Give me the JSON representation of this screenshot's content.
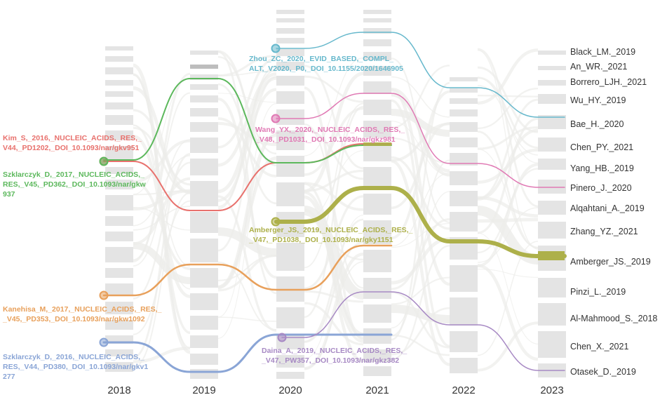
{
  "years": [
    "2018",
    "2019",
    "2020",
    "2021",
    "2022",
    "2023"
  ],
  "right_labels": [
    "Black_LM._2019",
    "An_WR._2021",
    "Borrero_LJH._2021",
    "Wu_HY._2019",
    "Bae_H._2020",
    "Chen_PY._2021",
    "Yang_HB._2019",
    "Pinero_J._2020",
    "Alqahtani_A._2019",
    "Zhang_YZ._2021",
    "Amberger_JS._2019",
    "Pinzi_L._2019",
    "Al-Mahmood_S._2018",
    "Chen_X._2021",
    "Otasek_D._2019"
  ],
  "papers": [
    {
      "id": "kim",
      "color": "#e8716d",
      "lines": [
        "Kim_S,_2016,_NUCLEIC_ACIDS,_RES,_",
        "V44,_PD1202,_DOI_10.1093/nar/gkv951"
      ]
    },
    {
      "id": "szk2017",
      "color": "#5cb85c",
      "lines": [
        "Szklarczyk_D,_2017,_NUCLEIC_ACIDS,_",
        "RES,_V45,_PD362,_DOI_10.1093/nar/gkw",
        "937"
      ]
    },
    {
      "id": "kanehisa",
      "color": "#e8a05b",
      "lines": [
        "Kanehisa_M,_2017,_NUCLEIC_ACIDS,_RES,_",
        "_V45,_PD353,_DOI_10.1093/nar/gkw1092"
      ]
    },
    {
      "id": "szk2016",
      "color": "#8aa5d6",
      "lines": [
        "Szklarczyk_D,_2016,_NUCLEIC_ACIDS,_",
        "RES,_V44,_PD380,_DOI_10.1093/nar/gkv1",
        "277"
      ]
    },
    {
      "id": "zhou",
      "color": "#66b8cc",
      "lines": [
        "Zhou_ZC,_2020,_EVID_BASED,_COMPL_",
        "ALT,_V2020,_P0,_DOI_10.1155/2020/1646905"
      ]
    },
    {
      "id": "wang",
      "color": "#e079b4",
      "lines": [
        "Wang_YX,_2020,_NUCLEIC_ACIDS,_RES,_",
        "_V48,_PD1031,_DOI_10.1093/nar/gkz981"
      ]
    },
    {
      "id": "amberger",
      "color": "#adb04a",
      "lines": [
        "Amberger_JS,_2019,_NUCLEIC_ACIDS,_RES,_",
        "_V47,_PD1038,_DOI_10.1093/nar/gky1151"
      ]
    },
    {
      "id": "daina",
      "color": "#a789c4",
      "lines": [
        "Daina_A,_2019,_NUCLEIC_ACIDS,_RES,_",
        "_V47,_PW357,_DOI_10.1093/nar/gkz382"
      ]
    }
  ],
  "colors": {
    "node": "#e4e4e4",
    "background_flow": "#ececea",
    "text": "#333333"
  }
}
